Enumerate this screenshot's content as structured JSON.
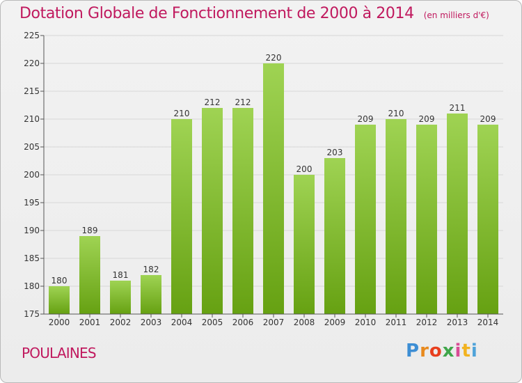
{
  "header": {
    "title": "Dotation Globale de Fonctionnement de 2000 à 2014",
    "subtitle": "(en milliers d'€)"
  },
  "footer": {
    "commune": "POULAINES",
    "logo": "Proxiti",
    "logo_colors": [
      "#3d8ed4",
      "#e88a1e",
      "#e83f1e",
      "#3fa64a",
      "#d94b95",
      "#f2b31f",
      "#4fa3d9"
    ]
  },
  "colors": {
    "bar_top": "#9fd353",
    "bar_bottom": "#66a112",
    "grid": "#d7d7d7",
    "axis": "#555555",
    "title": "#c0195e"
  },
  "chart_data": {
    "type": "bar",
    "title": "Dotation Globale de Fonctionnement de 2000 à 2014",
    "xlabel": "",
    "ylabel": "",
    "categories": [
      "2000",
      "2001",
      "2002",
      "2003",
      "2004",
      "2005",
      "2006",
      "2007",
      "2008",
      "2009",
      "2010",
      "2011",
      "2012",
      "2013",
      "2014"
    ],
    "values": [
      180,
      189,
      181,
      182,
      210,
      212,
      212,
      220,
      200,
      203,
      209,
      210,
      209,
      211,
      209
    ],
    "ylim": [
      175,
      225
    ],
    "yticks": [
      175,
      180,
      185,
      190,
      195,
      200,
      205,
      210,
      215,
      220,
      225
    ],
    "grid": true,
    "legend": "none"
  }
}
